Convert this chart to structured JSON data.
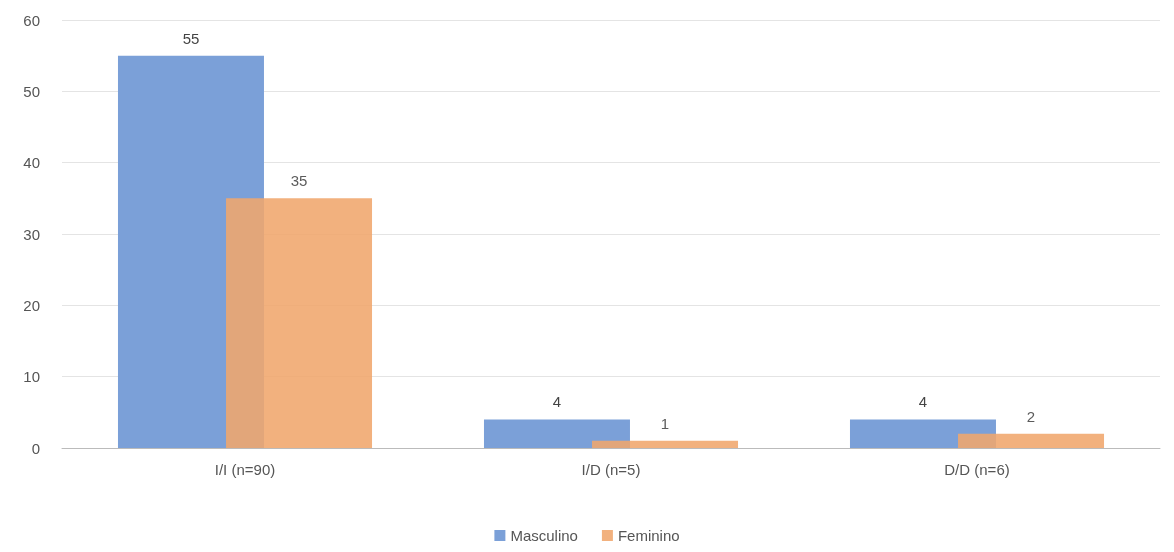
{
  "chart_data": {
    "type": "bar",
    "categories": [
      "I/I (n=90)",
      "I/D (n=5)",
      "D/D (n=6)"
    ],
    "series": [
      {
        "name": "Masculino",
        "color": "#7ba0d8",
        "values": [
          55,
          4,
          4
        ]
      },
      {
        "name": "Feminino",
        "color": "#f0a66c",
        "values": [
          35,
          1,
          2
        ]
      }
    ],
    "ylim": [
      0,
      60
    ],
    "yticks": [
      0,
      10,
      20,
      30,
      40,
      50,
      60
    ],
    "grid": "y",
    "legend": "bottom",
    "data_labels": true
  }
}
